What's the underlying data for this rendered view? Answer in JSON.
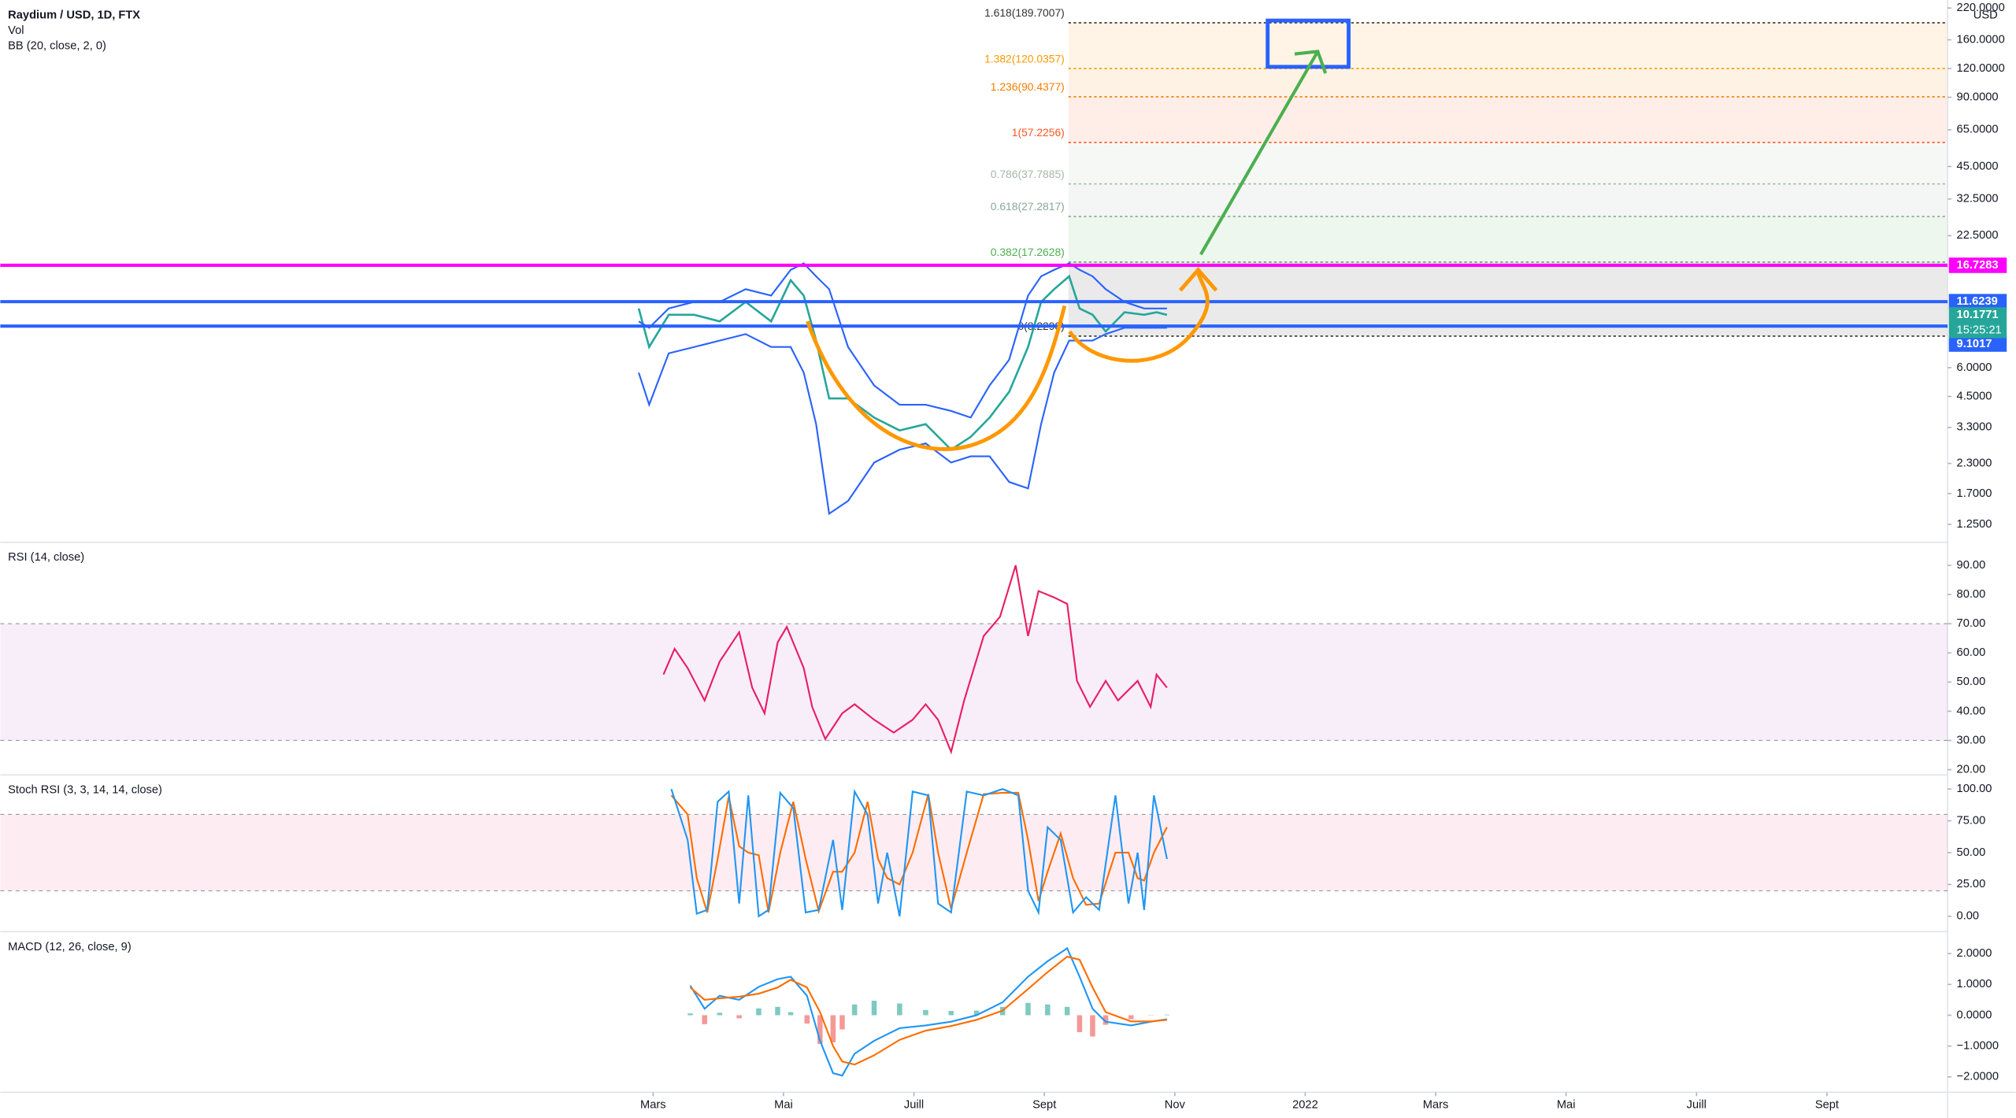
{
  "chart_data": [
    {
      "type": "line",
      "title": "Raydium / USD, 1D, FTX",
      "indicators": [
        "Vol",
        "BB (20, close, 2, 0)"
      ],
      "currency": "USD",
      "log_scale": true,
      "xlim": [
        -7.01,
        22.85
      ],
      "ylim": [
        1.044,
        238.4
      ],
      "yticks": [
        {
          "value": 220,
          "label": "220.0000"
        },
        {
          "value": 160,
          "label": "160.0000"
        },
        {
          "value": 120,
          "label": "120.0000"
        },
        {
          "value": 90,
          "label": "90.0000"
        },
        {
          "value": 65,
          "label": "65.0000"
        },
        {
          "value": 45,
          "label": "45.0000"
        },
        {
          "value": 32.5,
          "label": "32.5000"
        },
        {
          "value": 22.5,
          "label": "22.5000"
        },
        {
          "value": 6,
          "label": "6.0000"
        },
        {
          "value": 4.5,
          "label": "4.5000"
        },
        {
          "value": 3.3,
          "label": "3.3000"
        },
        {
          "value": 2.3,
          "label": "2.3000"
        },
        {
          "value": 1.7,
          "label": "1.7000"
        },
        {
          "value": 1.25,
          "label": "1.2500"
        }
      ],
      "x": [
        2.78,
        2.94,
        3.24,
        3.63,
        4.02,
        4.42,
        4.81,
        5.11,
        5.31,
        5.5,
        5.7,
        5.99,
        6.39,
        6.78,
        7.18,
        7.57,
        7.87,
        8.16,
        8.46,
        8.75,
        8.95,
        9.15,
        9.38,
        9.54,
        9.74,
        9.94,
        10.23,
        10.53,
        10.72,
        10.88
      ],
      "series": [
        {
          "color": "#26a69a",
          "values": [
            10.86,
            7.38,
            10.19,
            10.19,
            9.54,
            11.59,
            9.54,
            14.41,
            12.35,
            7.87,
            4.41,
            4.41,
            3.64,
            3.2,
            3.41,
            2.64,
            3.0,
            3.64,
            4.71,
            7.38,
            11.59,
            13.17,
            14.98,
            10.86,
            10.19,
            8.62,
            10.45,
            10.19,
            10.45,
            10.18
          ]
        },
        {
          "color": "#2962ff",
          "values": [
            9.54,
            8.95,
            10.86,
            11.59,
            11.59,
            13.17,
            12.35,
            15.98,
            17.06,
            14.98,
            13.17,
            7.38,
            5.02,
            4.14,
            4.14,
            3.89,
            3.64,
            5.02,
            6.5,
            12.35,
            14.98,
            15.98,
            17.06,
            15.98,
            14.98,
            13.17,
            11.59,
            10.86,
            10.86,
            10.86
          ]
        },
        {
          "color": "#2962ff",
          "values": [
            5.71,
            4.14,
            6.93,
            7.38,
            7.87,
            8.4,
            7.38,
            7.38,
            5.71,
            3.41,
            1.39,
            1.58,
            2.32,
            2.64,
            2.81,
            2.32,
            2.47,
            2.47,
            1.91,
            1.79,
            3.41,
            5.71,
            7.87,
            7.87,
            7.87,
            8.4,
            8.95,
            8.95,
            8.95,
            8.95
          ]
        }
      ],
      "fib_levels": [
        {
          "value": 189.7007,
          "label": "1.618(189.7007)",
          "color": "#333333"
        },
        {
          "value": 120.0357,
          "label": "1.382(120.0357)",
          "color": "#ff9800"
        },
        {
          "value": 90.4377,
          "label": "1.236(90.4377)",
          "color": "#f57c00"
        },
        {
          "value": 57.2256,
          "label": "1(57.2256)",
          "color": "#ff5722"
        },
        {
          "value": 37.7885,
          "label": "0.786(37.7885)",
          "color": "#a5b8a8"
        },
        {
          "value": 27.2817,
          "label": "0.618(27.2817)",
          "color": "#8aa896"
        },
        {
          "value": 17.2628,
          "label": "0.382(17.2628)",
          "color": "#4caf50"
        },
        {
          "value": 8.2298,
          "label": "0(8.2298)",
          "color": "#333333"
        }
      ],
      "price_lines": [
        {
          "value": 16.7283,
          "color": "#ff00ff"
        },
        {
          "value": 11.6239,
          "color": "#2962ff"
        },
        {
          "value": 9.1017,
          "color": "#2962ff"
        }
      ],
      "last_price": {
        "value": 10.1771,
        "countdown": "15:25:21",
        "color": "#26a69a"
      }
    },
    {
      "type": "line",
      "title": "RSI (14, close)",
      "xlim": [
        -7.01,
        22.85
      ],
      "ylim": [
        18.2,
        97.9
      ],
      "band": [
        30,
        70
      ],
      "band_color": "#9c27b0",
      "yticks": [
        {
          "value": 90,
          "label": "90.00"
        },
        {
          "value": 80,
          "label": "80.00"
        },
        {
          "value": 70,
          "label": "70.00"
        },
        {
          "value": 60,
          "label": "60.00"
        },
        {
          "value": 50,
          "label": "50.00"
        },
        {
          "value": 40,
          "label": "40.00"
        },
        {
          "value": 30,
          "label": "30.00"
        },
        {
          "value": 20,
          "label": "20.00"
        }
      ],
      "x": [
        3.16,
        3.33,
        3.53,
        3.79,
        4.02,
        4.32,
        4.52,
        4.71,
        4.91,
        5.05,
        5.31,
        5.44,
        5.64,
        5.9,
        6.09,
        6.39,
        6.69,
        6.98,
        7.18,
        7.37,
        7.57,
        7.77,
        8.07,
        8.32,
        8.56,
        8.75,
        8.91,
        9.15,
        9.35,
        9.5,
        9.7,
        9.94,
        10.13,
        10.43,
        10.63,
        10.72,
        10.88
      ],
      "series": [
        {
          "color": "#e91e63",
          "values": [
            52.6,
            61.4,
            54.8,
            43.7,
            57.0,
            67.1,
            48.1,
            39.3,
            63.6,
            68.9,
            54.8,
            41.5,
            30.5,
            39.3,
            42.4,
            37.1,
            32.7,
            37.1,
            42.4,
            37.1,
            26.1,
            43.7,
            65.8,
            72.4,
            90.0,
            65.8,
            81.2,
            79.0,
            76.8,
            50.4,
            41.5,
            50.4,
            43.7,
            50.4,
            41.5,
            52.6,
            48.1
          ]
        }
      ]
    },
    {
      "type": "line",
      "title": "Stoch RSI (3, 3, 14, 14, close)",
      "xlim": [
        -7.01,
        22.85
      ],
      "ylim": [
        -12.1,
        111.1
      ],
      "band": [
        20,
        80
      ],
      "band_color": "#e91e63",
      "yticks": [
        {
          "value": 100,
          "label": "100.00"
        },
        {
          "value": 75,
          "label": "75.00"
        },
        {
          "value": 50,
          "label": "50.00"
        },
        {
          "value": 25,
          "label": "25.00"
        },
        {
          "value": 0,
          "label": "0.00"
        }
      ],
      "x": [
        3.28,
        3.53,
        3.67,
        3.83,
        3.99,
        4.16,
        4.32,
        4.46,
        4.62,
        4.77,
        4.95,
        5.15,
        5.34,
        5.54,
        5.76,
        5.9,
        6.09,
        6.29,
        6.45,
        6.59,
        6.78,
        6.98,
        7.22,
        7.37,
        7.57,
        7.81,
        8.07,
        8.36,
        8.6,
        8.75,
        8.91,
        9.05,
        9.25,
        9.44,
        9.64,
        9.84,
        10.09,
        10.29,
        10.43,
        10.53,
        10.68,
        10.88
      ],
      "series": [
        {
          "color": "#ff6d00",
          "values": [
            95,
            80,
            30,
            3,
            45,
            94,
            55,
            50,
            48,
            3,
            50,
            90,
            45,
            4,
            35,
            35,
            50,
            90,
            45,
            30,
            25,
            50,
            96,
            50,
            6,
            50,
            96,
            97,
            97,
            60,
            12,
            35,
            65,
            30,
            9,
            10,
            50,
            50,
            30,
            28,
            50,
            70
          ]
        },
        {
          "color": "#2196f3",
          "values": [
            100,
            60,
            2,
            5,
            90,
            98,
            10,
            95,
            0,
            5,
            97,
            85,
            3,
            5,
            60,
            5,
            98,
            80,
            10,
            50,
            0,
            98,
            95,
            10,
            3,
            98,
            95,
            100,
            95,
            20,
            3,
            70,
            60,
            3,
            15,
            5,
            95,
            10,
            50,
            5,
            95,
            45
          ]
        }
      ]
    },
    {
      "type": "line",
      "title": "MACD (12, 26, close, 9)",
      "xlim": [
        -7.01,
        22.85
      ],
      "ylim": [
        -2.5,
        2.71
      ],
      "yticks": [
        {
          "value": 2,
          "label": "2.0000"
        },
        {
          "value": 1,
          "label": "1.0000"
        },
        {
          "value": 0,
          "label": "0.0000"
        },
        {
          "value": -1,
          "label": "−1.0000"
        },
        {
          "value": -2,
          "label": "−2.0000"
        }
      ],
      "xticks": [
        {
          "value": 3,
          "label": "Mars"
        },
        {
          "value": 5,
          "label": "Mai"
        },
        {
          "value": 7,
          "label": "Juill"
        },
        {
          "value": 9,
          "label": "Sept"
        },
        {
          "value": 11,
          "label": "Nov"
        },
        {
          "value": 13,
          "label": "2022"
        },
        {
          "value": 15,
          "label": "Mars"
        },
        {
          "value": 17,
          "label": "Mai"
        },
        {
          "value": 19,
          "label": "Juill"
        },
        {
          "value": 21,
          "label": "Sept"
        }
      ],
      "x": [
        3.57,
        3.79,
        4.02,
        4.32,
        4.62,
        4.91,
        5.11,
        5.36,
        5.56,
        5.76,
        5.9,
        6.09,
        6.39,
        6.78,
        7.18,
        7.57,
        7.96,
        8.36,
        8.75,
        9.05,
        9.35,
        9.54,
        9.74,
        9.94,
        10.33,
        10.63,
        10.88
      ],
      "histogram": {
        "colors": [
          "#26a69a",
          "#ef5350"
        ],
        "values": [
          0.06,
          -0.29,
          0.08,
          -0.1,
          0.22,
          0.27,
          0.1,
          -0.27,
          -0.93,
          -0.88,
          -0.46,
          0.35,
          0.47,
          0.38,
          0.17,
          0.14,
          0.15,
          0.27,
          0.4,
          0.35,
          0.27,
          -0.55,
          -0.69,
          -0.31,
          -0.13,
          -0.01,
          0.02
        ]
      },
      "series": [
        {
          "color": "#2196f3",
          "values": [
            0.96,
            0.21,
            0.63,
            0.5,
            0.92,
            1.17,
            1.25,
            0.63,
            -0.83,
            -1.88,
            -1.96,
            -1.25,
            -0.83,
            -0.42,
            -0.33,
            -0.21,
            0,
            0.42,
            1.25,
            1.75,
            2.17,
            1.25,
            0.21,
            -0.21,
            -0.33,
            -0.21,
            -0.13
          ]
        },
        {
          "color": "#ff6d00",
          "values": [
            0.9,
            0.5,
            0.55,
            0.6,
            0.7,
            0.9,
            1.15,
            0.9,
            0.1,
            -1.0,
            -1.5,
            -1.6,
            -1.3,
            -0.8,
            -0.5,
            -0.35,
            -0.15,
            0.15,
            0.85,
            1.4,
            1.9,
            1.8,
            0.9,
            0.1,
            -0.2,
            -0.2,
            -0.15
          ]
        }
      ]
    }
  ]
}
